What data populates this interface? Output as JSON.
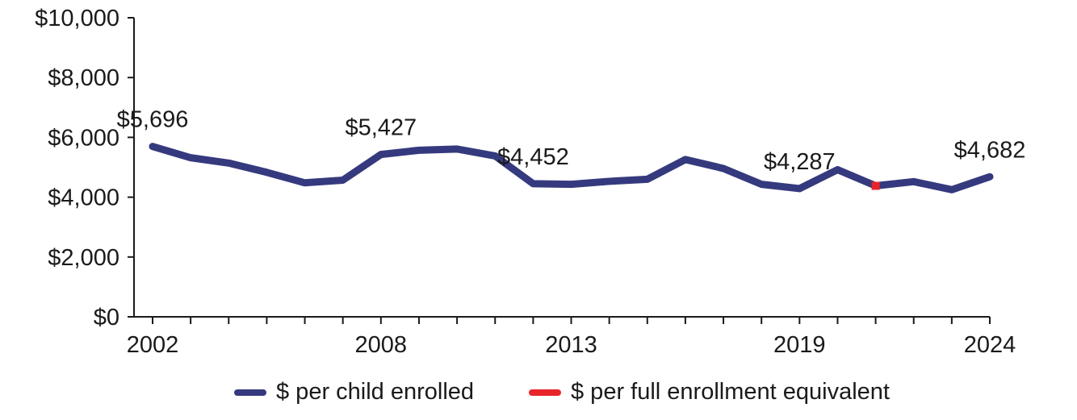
{
  "chart_data": {
    "type": "line",
    "title": "",
    "xlabel": "",
    "ylabel": "",
    "ylim": [
      0,
      10000
    ],
    "xlim": [
      2002,
      2024
    ],
    "y_ticks": [
      0,
      2000,
      4000,
      6000,
      8000,
      10000
    ],
    "y_tick_labels": [
      "$0",
      "$2,000",
      "$4,000",
      "$6,000",
      "$8,000",
      "$10,000"
    ],
    "x_tick_labels": [
      {
        "year": 2002,
        "label": "2002"
      },
      {
        "year": 2008,
        "label": "2008"
      },
      {
        "year": 2013,
        "label": "2013"
      },
      {
        "year": 2019,
        "label": "2019"
      },
      {
        "year": 2024,
        "label": "2024"
      }
    ],
    "grid": false,
    "legend_position": "bottom",
    "series": [
      {
        "name": "$ per child enrolled",
        "color": "#353a7e",
        "x": [
          2002,
          2003,
          2004,
          2005,
          2006,
          2007,
          2008,
          2009,
          2010,
          2011,
          2012,
          2013,
          2014,
          2015,
          2016,
          2017,
          2018,
          2019,
          2020,
          2021,
          2022,
          2023,
          2024
        ],
        "values": [
          5696,
          5320,
          5140,
          4830,
          4480,
          4570,
          5427,
          5570,
          5610,
          5380,
          4452,
          4430,
          4530,
          4600,
          5260,
          4960,
          4430,
          4287,
          4920,
          4380,
          4520,
          4250,
          4682
        ]
      },
      {
        "name": "$ per full enrollment equivalent",
        "color": "#e8242b",
        "x": [
          2021
        ],
        "values": [
          4380
        ]
      }
    ],
    "annotations": [
      {
        "year": 2002,
        "value": 5696,
        "label": "$5,696"
      },
      {
        "year": 2008,
        "value": 5427,
        "label": "$5,427"
      },
      {
        "year": 2012,
        "value": 4452,
        "label": "$4,452"
      },
      {
        "year": 2019,
        "value": 4287,
        "label": "$4,287"
      },
      {
        "year": 2024,
        "value": 4682,
        "label": "$4,682"
      }
    ]
  }
}
